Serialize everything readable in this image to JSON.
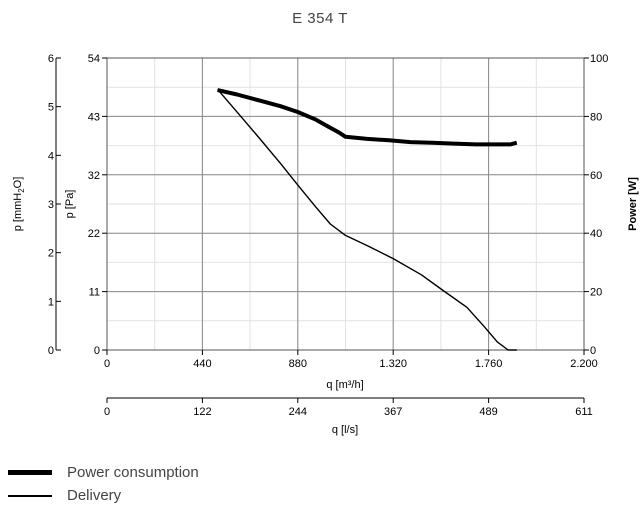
{
  "chart_data": {
    "type": "line",
    "title": "E 354 T",
    "x_axis_primary": {
      "label": "q [m³/h]",
      "range": [
        0,
        2200
      ],
      "ticks": [
        0,
        440,
        880,
        1320,
        1760,
        2200
      ],
      "tick_labels": [
        "0",
        "440",
        "880",
        "1.320",
        "1.760",
        "2.200"
      ]
    },
    "x_axis_secondary": {
      "label": "q [l/s]",
      "range": [
        0,
        611
      ],
      "tick_labels": [
        "0",
        "122",
        "244",
        "367",
        "489",
        "611"
      ]
    },
    "y_axis_pa": {
      "label": "p [Pa]",
      "range": [
        0,
        54
      ],
      "tick_labels": [
        "0",
        "11",
        "22",
        "32",
        "43",
        "54"
      ]
    },
    "y_axis_mmh2o": {
      "label_main": "p [mmH",
      "label_sub": "2",
      "label_end": "O]",
      "range": [
        0,
        6
      ],
      "tick_labels": [
        "0",
        "1",
        "2",
        "3",
        "4",
        "5",
        "6"
      ]
    },
    "y_axis_power": {
      "label": "Power [W]",
      "range": [
        0,
        100
      ],
      "tick_labels": [
        "0",
        "20",
        "40",
        "60",
        "80",
        "100"
      ]
    },
    "grid": true,
    "series": [
      {
        "name": "Power consumption",
        "axis": "power",
        "x": [
          510,
          600,
          700,
          800,
          880,
          960,
          1020,
          1070,
          1100,
          1200,
          1300,
          1400,
          1500,
          1600,
          1700,
          1800,
          1860,
          1890
        ],
        "y": [
          89,
          87.5,
          85.5,
          83.5,
          81.5,
          79,
          76.5,
          74.5,
          73,
          72.3,
          71.8,
          71.2,
          71,
          70.7,
          70.4,
          70.4,
          70.4,
          71
        ],
        "color": "#000000"
      },
      {
        "name": "Delivery",
        "axis": "pa",
        "x": [
          510,
          600,
          700,
          800,
          880,
          960,
          1030,
          1100,
          1200,
          1320,
          1450,
          1550,
          1660,
          1740,
          1800,
          1850,
          1890
        ],
        "y": [
          48.2,
          44,
          39.3,
          34.5,
          30.5,
          26.6,
          23.3,
          21.2,
          19.3,
          16.9,
          13.9,
          11,
          7.9,
          4.3,
          1.5,
          0,
          0
        ],
        "color": "#000000"
      }
    ]
  }
}
